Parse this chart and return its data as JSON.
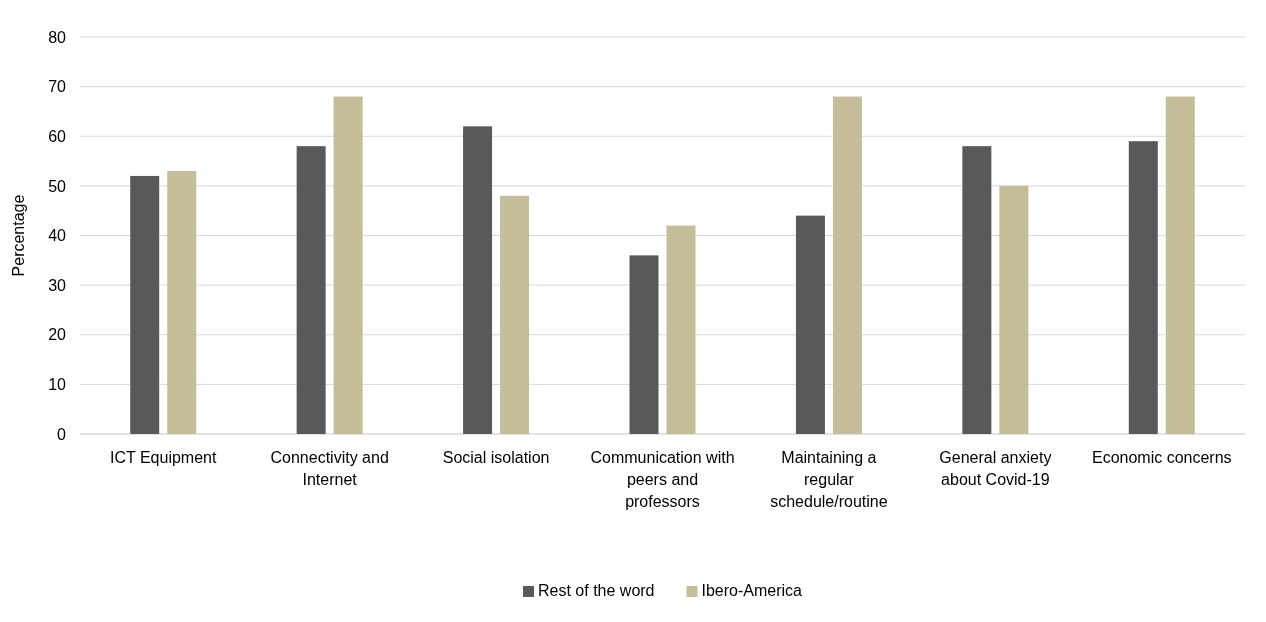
{
  "chart_data": {
    "type": "bar",
    "ylabel": "Percentage",
    "categories": [
      "ICT Equipment",
      "Connectivity and Internet",
      "Social isolation",
      "Communication with peers and professors",
      "Maintaining a regular schedule/routine",
      "General anxiety about Covid-19",
      "Economic concerns"
    ],
    "series": [
      {
        "name": "Rest of the word",
        "color": "#595959",
        "values": [
          52,
          58,
          62,
          36,
          44,
          58,
          59
        ]
      },
      {
        "name": "Ibero-America",
        "color": "#c4bd97",
        "values": [
          53,
          68,
          48,
          42,
          68,
          50,
          68
        ]
      }
    ],
    "ylim": [
      0,
      80
    ],
    "yticks": [
      0,
      10,
      20,
      30,
      40,
      50,
      60,
      70,
      80
    ],
    "grid": "y",
    "legend": "bottom"
  }
}
